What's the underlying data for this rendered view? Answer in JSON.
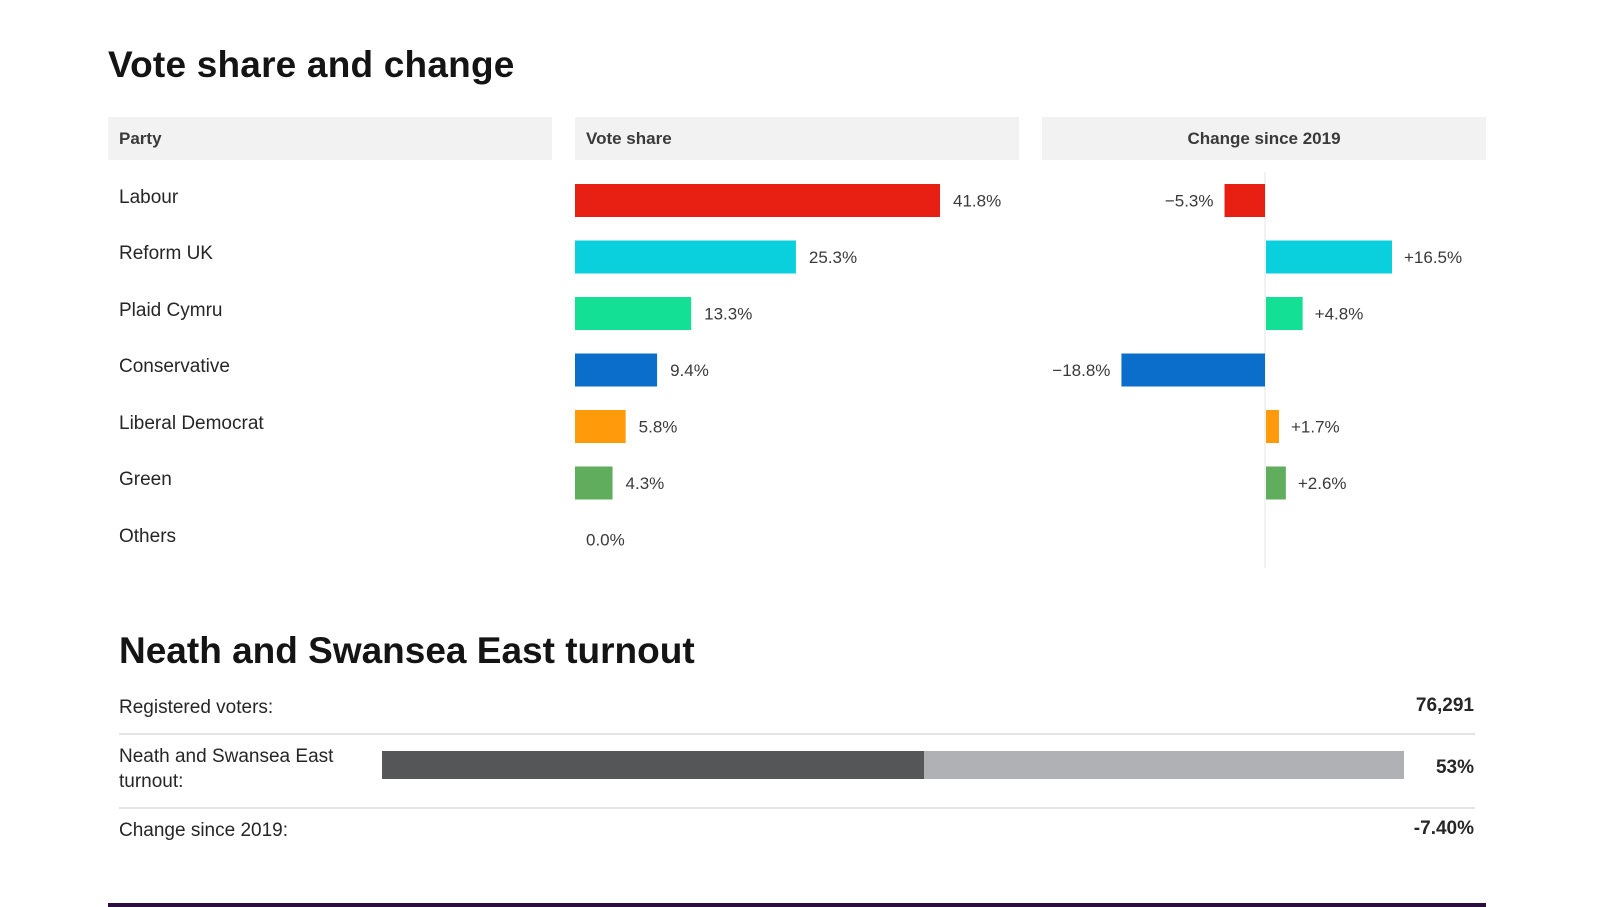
{
  "vote_share": {
    "title": "Vote share and change",
    "headers": {
      "party": "Party",
      "share": "Vote share",
      "change": "Change since 2019"
    }
  },
  "chart_data": {
    "type": "bar",
    "title": "Vote share and change",
    "categories": [
      "Labour",
      "Reform UK",
      "Plaid Cymru",
      "Conservative",
      "Liberal Democrat",
      "Green",
      "Others"
    ],
    "series": [
      {
        "name": "Vote share",
        "values": [
          41.8,
          25.3,
          13.3,
          9.4,
          5.8,
          4.3,
          0.0
        ]
      },
      {
        "name": "Change since 2019",
        "values": [
          -5.3,
          16.5,
          4.8,
          -18.8,
          1.7,
          2.6,
          null
        ]
      }
    ],
    "share_labels": [
      "41.8%",
      "25.3%",
      "13.3%",
      "9.4%",
      "5.8%",
      "4.3%",
      "0.0%"
    ],
    "change_labels": [
      "−5.3%",
      "+16.5%",
      "+4.8%",
      "−18.8%",
      "+1.7%",
      "+2.6%",
      ""
    ],
    "colors": [
      "#e81f13",
      "#0ad0dd",
      "#13e094",
      "#0b6ecb",
      "#ff9b0a",
      "#5fad5d",
      "#bbbbbb"
    ],
    "share_range": [
      0,
      50
    ],
    "change_range": [
      -20,
      20
    ]
  },
  "turnout": {
    "title": "Neath and Swansea East turnout",
    "registered_label": "Registered voters:",
    "registered_value": "76,291",
    "turnout_label": "Neath and Swansea East turnout:",
    "turnout_value": "53%",
    "turnout_fraction": 0.53,
    "change_label": "Change since 2019:",
    "change_value": "-7.40%",
    "colors": {
      "filled": "#545658",
      "track": "#b0b1b4"
    }
  }
}
